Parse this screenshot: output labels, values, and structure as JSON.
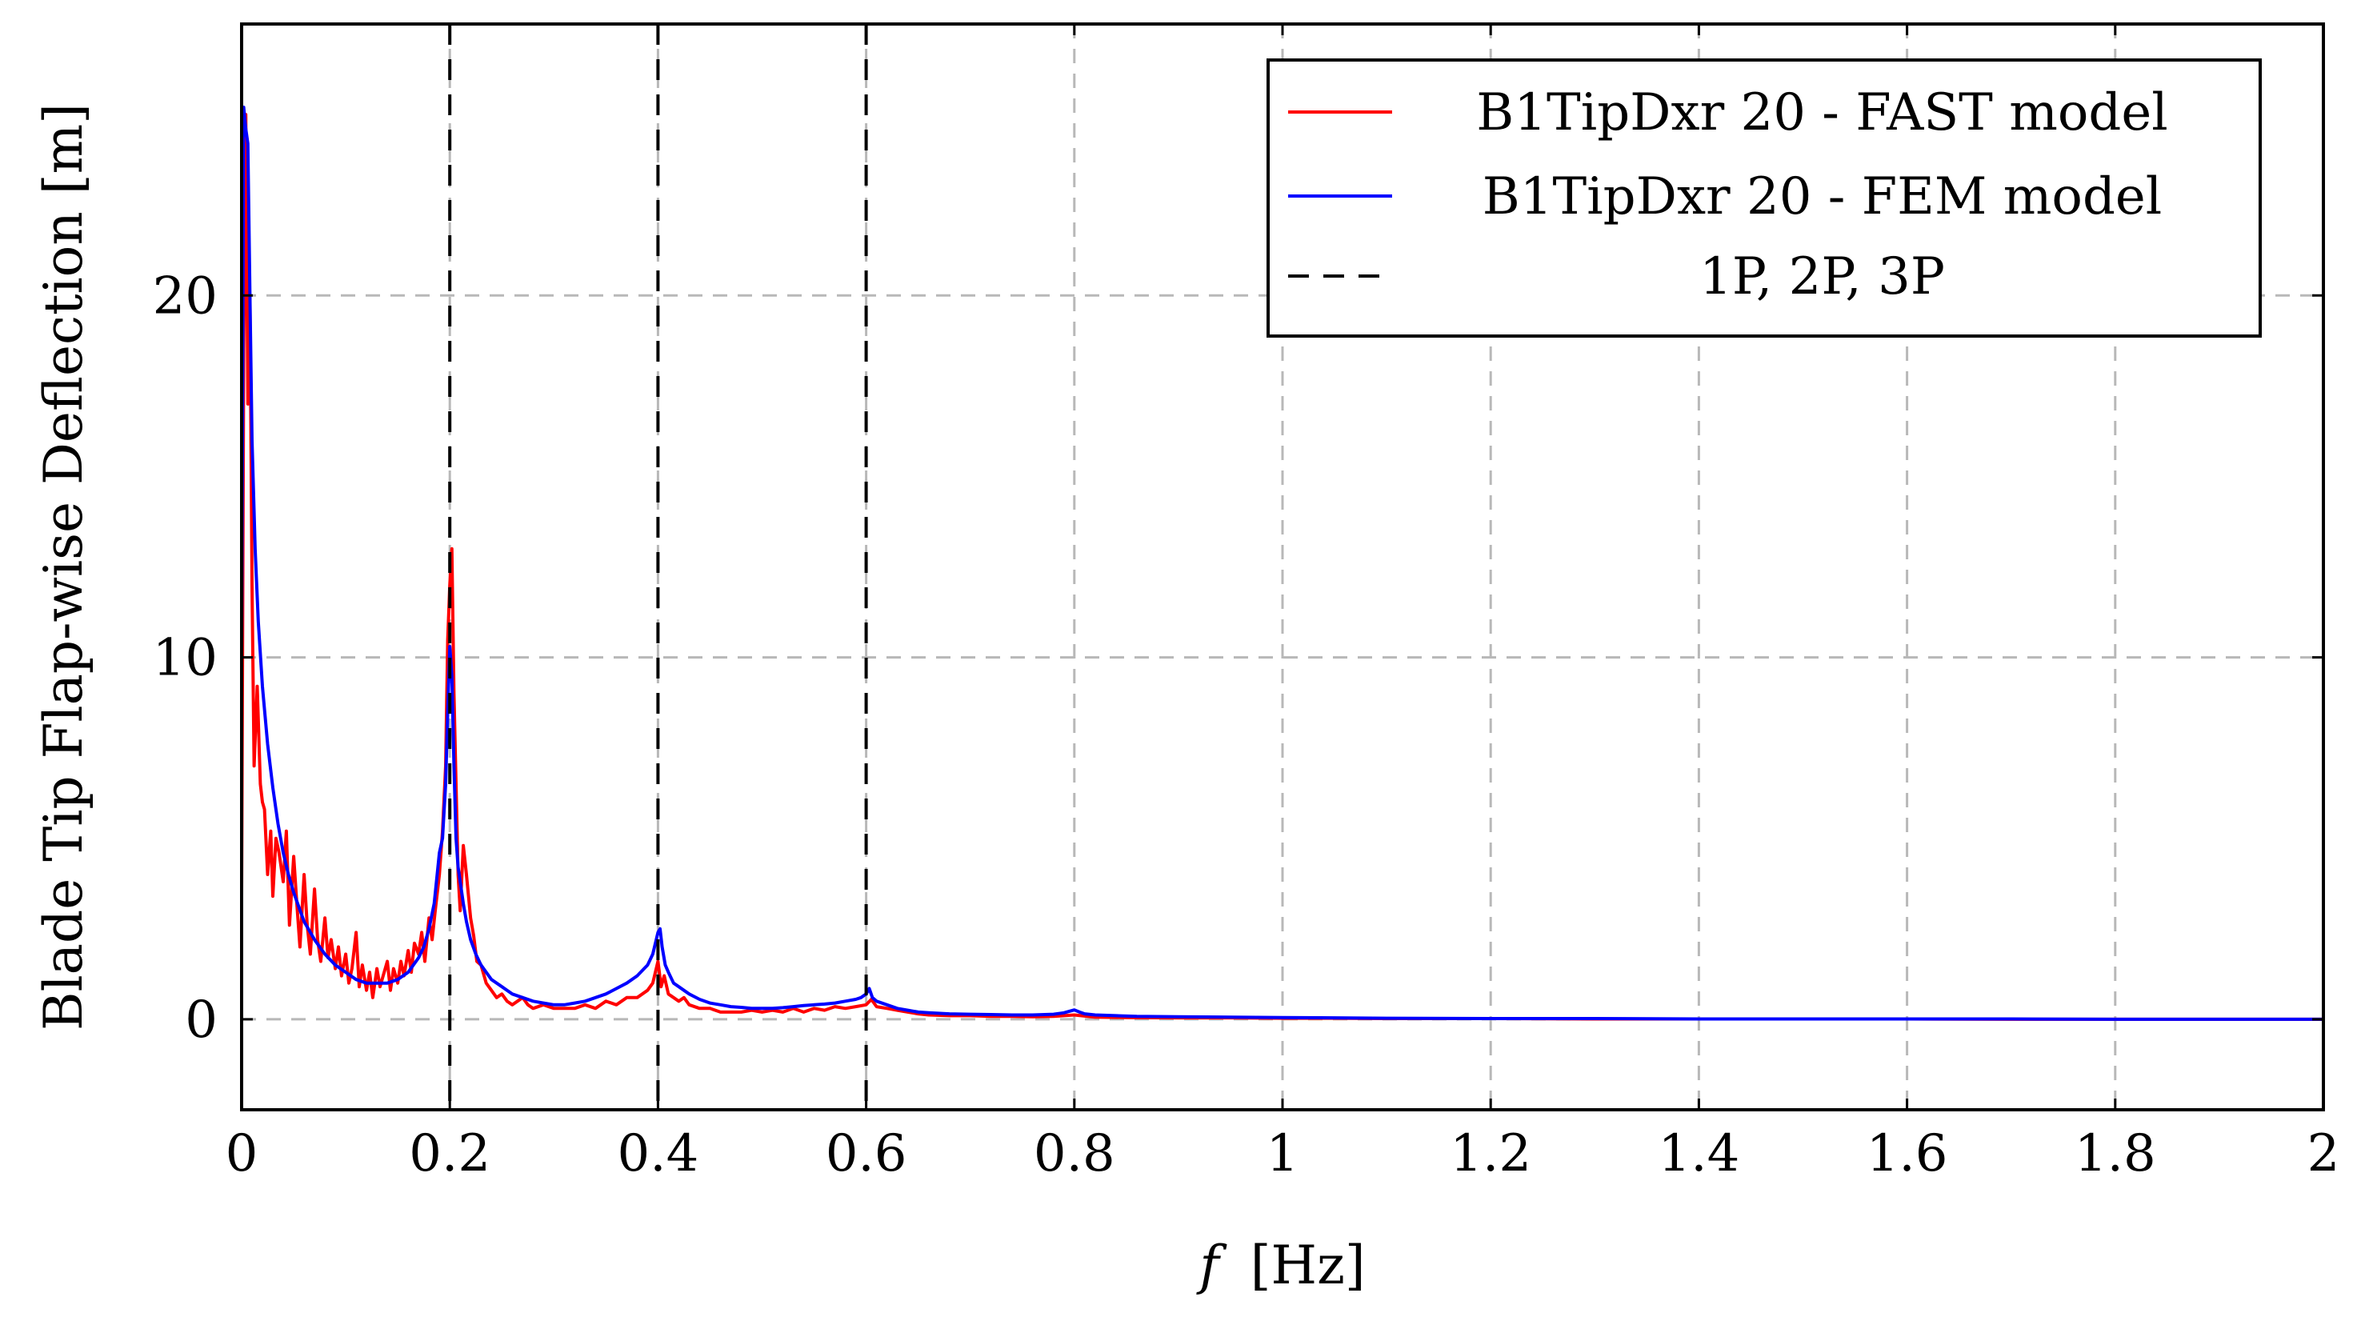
{
  "chart_data": {
    "type": "line",
    "xlabel": {
      "symbol": "f",
      "unit": "[Hz]"
    },
    "ylabel": "Blade Tip Flap-wise Deflection [m]",
    "xlim": [
      0,
      2
    ],
    "ylim": [
      -2.5,
      27.5
    ],
    "x_ticks": [
      0,
      0.2,
      0.4,
      0.6,
      0.8,
      1,
      1.2,
      1.4,
      1.6,
      1.8,
      2
    ],
    "x_tick_labels": [
      "0",
      "0.2",
      "0.4",
      "0.6",
      "0.8",
      "1",
      "1.2",
      "1.4",
      "1.6",
      "1.8",
      "2"
    ],
    "y_ticks": [
      0,
      10,
      20
    ],
    "y_tick_labels": [
      "0",
      "10",
      "20"
    ],
    "grid": true,
    "legend_position": "top-right",
    "vertical_lines": {
      "x": [
        0.2,
        0.4,
        0.6
      ],
      "style": "dashed",
      "color": "#000000"
    },
    "series": [
      {
        "name": "B1TipDxr 20 - FAST model",
        "color": "#ff0000",
        "x": [
          0,
          0.002,
          0.004,
          0.006,
          0.008,
          0.01,
          0.012,
          0.015,
          0.018,
          0.02,
          0.022,
          0.025,
          0.028,
          0.03,
          0.033,
          0.036,
          0.04,
          0.043,
          0.046,
          0.05,
          0.053,
          0.056,
          0.06,
          0.063,
          0.066,
          0.07,
          0.073,
          0.076,
          0.08,
          0.083,
          0.086,
          0.09,
          0.093,
          0.096,
          0.1,
          0.103,
          0.106,
          0.11,
          0.113,
          0.116,
          0.12,
          0.123,
          0.126,
          0.13,
          0.133,
          0.136,
          0.14,
          0.143,
          0.146,
          0.15,
          0.153,
          0.156,
          0.16,
          0.163,
          0.166,
          0.17,
          0.173,
          0.176,
          0.18,
          0.183,
          0.186,
          0.19,
          0.193,
          0.196,
          0.198,
          0.2,
          0.202,
          0.204,
          0.206,
          0.208,
          0.21,
          0.213,
          0.216,
          0.22,
          0.223,
          0.226,
          0.23,
          0.235,
          0.24,
          0.245,
          0.25,
          0.255,
          0.26,
          0.265,
          0.27,
          0.275,
          0.28,
          0.29,
          0.3,
          0.31,
          0.32,
          0.33,
          0.34,
          0.35,
          0.36,
          0.37,
          0.38,
          0.39,
          0.395,
          0.4,
          0.403,
          0.406,
          0.41,
          0.415,
          0.42,
          0.425,
          0.43,
          0.44,
          0.45,
          0.46,
          0.47,
          0.48,
          0.49,
          0.5,
          0.51,
          0.52,
          0.53,
          0.54,
          0.55,
          0.56,
          0.57,
          0.58,
          0.59,
          0.6,
          0.605,
          0.61,
          0.62,
          0.63,
          0.64,
          0.65,
          0.66,
          0.68,
          0.7,
          0.72,
          0.74,
          0.76,
          0.78,
          0.8,
          0.82,
          0.85,
          0.9,
          0.95,
          1.0,
          1.05,
          1.1,
          1.2,
          1.3,
          1.4,
          1.5,
          1.6,
          1.7,
          1.8,
          1.9,
          2.0
        ],
        "y": [
          3.4,
          18.5,
          25.0,
          17.0,
          20.0,
          12.0,
          7.0,
          9.2,
          6.5,
          6.0,
          5.8,
          4.0,
          5.2,
          3.4,
          5.0,
          4.6,
          3.8,
          5.2,
          2.6,
          4.5,
          3.2,
          2.0,
          4.0,
          2.6,
          1.8,
          3.6,
          2.2,
          1.6,
          2.8,
          1.7,
          2.2,
          1.4,
          2.0,
          1.2,
          1.8,
          1.0,
          1.4,
          2.4,
          0.9,
          1.5,
          0.8,
          1.3,
          0.6,
          1.4,
          0.9,
          1.2,
          1.6,
          0.8,
          1.4,
          1.0,
          1.6,
          1.2,
          1.9,
          1.3,
          2.1,
          1.8,
          2.4,
          1.6,
          2.8,
          2.2,
          3.0,
          4.0,
          5.2,
          7.0,
          10.5,
          12.0,
          13.0,
          9.0,
          6.5,
          4.0,
          3.0,
          4.8,
          4.0,
          2.8,
          2.3,
          1.6,
          1.5,
          1.0,
          0.8,
          0.6,
          0.7,
          0.5,
          0.4,
          0.5,
          0.6,
          0.4,
          0.3,
          0.4,
          0.3,
          0.3,
          0.3,
          0.4,
          0.3,
          0.5,
          0.4,
          0.6,
          0.6,
          0.8,
          1.0,
          1.6,
          0.9,
          1.2,
          0.7,
          0.6,
          0.5,
          0.6,
          0.4,
          0.3,
          0.3,
          0.2,
          0.2,
          0.2,
          0.25,
          0.2,
          0.25,
          0.2,
          0.3,
          0.2,
          0.3,
          0.25,
          0.35,
          0.3,
          0.35,
          0.4,
          0.55,
          0.35,
          0.3,
          0.25,
          0.2,
          0.15,
          0.12,
          0.1,
          0.1,
          0.08,
          0.08,
          0.07,
          0.08,
          0.12,
          0.06,
          0.05,
          0.04,
          0.04,
          0.03,
          0.03,
          0.02,
          0.02,
          0.01,
          0.01,
          0.01,
          0.01,
          0.0,
          0.0,
          0.0,
          0.0
        ]
      },
      {
        "name": "B1TipDxr 20 - FEM model",
        "color": "#0000ff",
        "x": [
          0,
          0.002,
          0.004,
          0.006,
          0.008,
          0.01,
          0.013,
          0.016,
          0.02,
          0.025,
          0.03,
          0.035,
          0.04,
          0.045,
          0.05,
          0.055,
          0.06,
          0.07,
          0.08,
          0.09,
          0.1,
          0.11,
          0.12,
          0.13,
          0.14,
          0.15,
          0.16,
          0.165,
          0.17,
          0.175,
          0.18,
          0.185,
          0.19,
          0.193,
          0.196,
          0.198,
          0.2,
          0.202,
          0.204,
          0.206,
          0.208,
          0.21,
          0.213,
          0.216,
          0.22,
          0.225,
          0.23,
          0.24,
          0.25,
          0.26,
          0.27,
          0.28,
          0.29,
          0.3,
          0.31,
          0.32,
          0.33,
          0.34,
          0.35,
          0.36,
          0.37,
          0.38,
          0.39,
          0.395,
          0.4,
          0.402,
          0.404,
          0.407,
          0.41,
          0.415,
          0.42,
          0.43,
          0.44,
          0.45,
          0.46,
          0.47,
          0.48,
          0.49,
          0.5,
          0.51,
          0.52,
          0.53,
          0.54,
          0.55,
          0.56,
          0.57,
          0.58,
          0.59,
          0.595,
          0.6,
          0.603,
          0.606,
          0.61,
          0.62,
          0.63,
          0.64,
          0.65,
          0.66,
          0.68,
          0.7,
          0.72,
          0.74,
          0.76,
          0.78,
          0.79,
          0.8,
          0.805,
          0.81,
          0.82,
          0.84,
          0.86,
          0.9,
          0.95,
          1.0,
          1.05,
          1.1,
          1.2,
          1.3,
          1.4,
          1.5,
          1.6,
          1.7,
          1.8,
          1.9,
          2.0
        ],
        "y": [
          10.0,
          25.2,
          24.6,
          24.2,
          20.0,
          16.0,
          13.0,
          11.0,
          9.2,
          7.6,
          6.4,
          5.4,
          4.6,
          4.0,
          3.5,
          3.1,
          2.7,
          2.2,
          1.8,
          1.5,
          1.3,
          1.1,
          1.0,
          1.0,
          1.0,
          1.1,
          1.3,
          1.5,
          1.7,
          2.0,
          2.5,
          3.2,
          4.6,
          5.0,
          6.5,
          8.5,
          10.3,
          9.5,
          7.0,
          5.0,
          4.2,
          3.8,
          3.2,
          2.7,
          2.2,
          1.8,
          1.5,
          1.1,
          0.9,
          0.7,
          0.6,
          0.5,
          0.45,
          0.4,
          0.4,
          0.45,
          0.5,
          0.6,
          0.7,
          0.85,
          1.0,
          1.2,
          1.5,
          1.8,
          2.4,
          2.5,
          2.0,
          1.5,
          1.3,
          1.0,
          0.9,
          0.7,
          0.55,
          0.45,
          0.4,
          0.35,
          0.33,
          0.3,
          0.3,
          0.3,
          0.32,
          0.35,
          0.38,
          0.4,
          0.42,
          0.45,
          0.5,
          0.55,
          0.6,
          0.7,
          0.85,
          0.6,
          0.5,
          0.4,
          0.3,
          0.25,
          0.2,
          0.18,
          0.15,
          0.14,
          0.13,
          0.12,
          0.12,
          0.14,
          0.18,
          0.26,
          0.2,
          0.15,
          0.12,
          0.1,
          0.08,
          0.07,
          0.06,
          0.05,
          0.04,
          0.03,
          0.02,
          0.02,
          0.01,
          0.01,
          0.01,
          0.01,
          0.0,
          0.0,
          0.0
        ]
      }
    ],
    "legend_entries": [
      {
        "label": "B1TipDxr 20 - FAST model",
        "color": "#ff0000",
        "style": "solid"
      },
      {
        "label": "B1TipDxr 20 - FEM model",
        "color": "#0000ff",
        "style": "solid"
      },
      {
        "label": "1P, 2P, 3P",
        "color": "#000000",
        "style": "dashed"
      }
    ]
  }
}
